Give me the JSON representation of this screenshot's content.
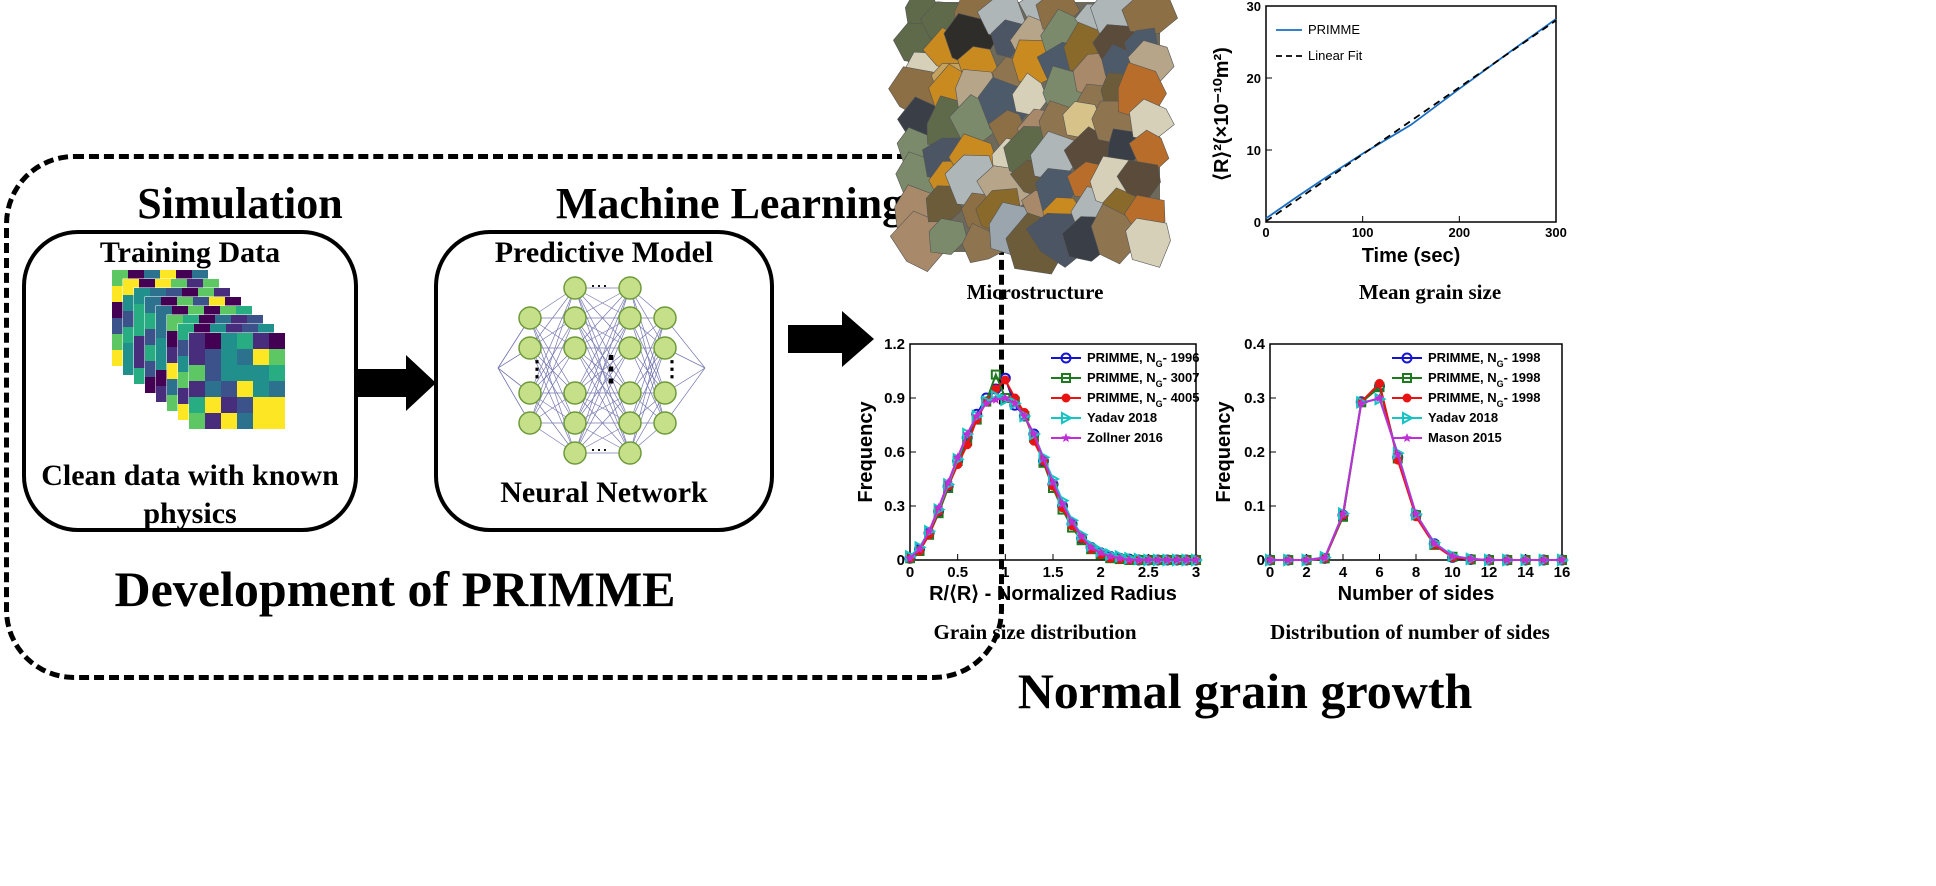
{
  "left": {
    "simulation_heading": "Simulation",
    "ml_heading": "Machine Learning",
    "training_label": "Training Data",
    "clean_label_1": "Clean data with known",
    "clean_label_2": "physics",
    "predictive_label": "Predictive Model",
    "nn_label": "Neural Network",
    "footer": "Development of PRIMME"
  },
  "captions": {
    "microstructure": "Microstructure",
    "mean_grain": "Mean grain size",
    "grain_dist": "Grain size distribution",
    "sides_dist": "Distribution of number of sides",
    "main_title": "Normal grain growth"
  },
  "colors": {
    "primme_blue": "#1a6fc4",
    "blue": "#1414d0",
    "green": "#1f7a1f",
    "red": "#e81414",
    "cyan": "#17c4c4",
    "magenta": "#c02ed6"
  },
  "chart_data": [
    {
      "type": "line",
      "xlabel": "Time (sec)",
      "ylabel": "⟨R⟩²(×10⁻¹⁰m²)",
      "xlim": [
        0,
        300
      ],
      "ylim": [
        0,
        30
      ],
      "xticks": [
        "0",
        "100",
        "200",
        "300"
      ],
      "yticks": [
        "0",
        "10",
        "20",
        "30"
      ],
      "legend_position": "top-left",
      "series": [
        {
          "name": "PRIMME",
          "style": "solid",
          "x": [
            0,
            30,
            60,
            100,
            150,
            200,
            250,
            300
          ],
          "y": [
            0.5,
            3.3,
            6.0,
            9.5,
            13.5,
            18.5,
            23.4,
            28.2
          ]
        },
        {
          "name": "Linear Fit",
          "style": "dashed",
          "x": [
            0,
            300
          ],
          "y": [
            0.1,
            28.0
          ]
        }
      ]
    },
    {
      "type": "line",
      "xlabel": "R/⟨R⟩ -  Normalized Radius",
      "ylabel": "Frequency",
      "xlim": [
        0,
        3
      ],
      "ylim": [
        0,
        1.2
      ],
      "xticks": [
        "0",
        "0.5",
        "1",
        "1.5",
        "2",
        "2.5",
        "3"
      ],
      "yticks": [
        "0",
        "0.3",
        "0.6",
        "0.9",
        "1.2"
      ],
      "legend_position": "top-right",
      "x": [
        0,
        0.1,
        0.2,
        0.3,
        0.4,
        0.5,
        0.6,
        0.7,
        0.8,
        0.9,
        1.0,
        1.1,
        1.2,
        1.3,
        1.4,
        1.5,
        1.6,
        1.7,
        1.8,
        1.9,
        2.0,
        2.1,
        2.2,
        2.3,
        2.4,
        2.5,
        2.6,
        2.7,
        2.8,
        2.9,
        3.0
      ],
      "series": [
        {
          "name": "PRIMME, N_G- 1996",
          "marker": "circle",
          "values": [
            0.01,
            0.06,
            0.15,
            0.27,
            0.41,
            0.55,
            0.68,
            0.81,
            0.9,
            0.95,
            1.01,
            0.86,
            0.8,
            0.7,
            0.55,
            0.42,
            0.3,
            0.2,
            0.12,
            0.07,
            0.04,
            0.02,
            0.01,
            0.005,
            0,
            0,
            0,
            0,
            0,
            0,
            0
          ]
        },
        {
          "name": "PRIMME, N_G- 3007",
          "marker": "square",
          "values": [
            0.01,
            0.05,
            0.14,
            0.26,
            0.4,
            0.55,
            0.66,
            0.78,
            0.88,
            1.03,
            0.9,
            0.88,
            0.8,
            0.68,
            0.54,
            0.4,
            0.28,
            0.18,
            0.11,
            0.06,
            0.03,
            0.01,
            0.005,
            0,
            0,
            0,
            0,
            0,
            0,
            0,
            0
          ]
        },
        {
          "name": "PRIMME, N_G- 4005",
          "marker": "diamond",
          "values": [
            0.01,
            0.05,
            0.14,
            0.27,
            0.41,
            0.53,
            0.64,
            0.78,
            0.88,
            0.95,
            1.0,
            0.9,
            0.82,
            0.66,
            0.55,
            0.41,
            0.29,
            0.19,
            0.12,
            0.06,
            0.03,
            0.01,
            0.005,
            0,
            0,
            0,
            0,
            0,
            0,
            0,
            0
          ]
        },
        {
          "name": "Yadav 2018",
          "marker": "triangle",
          "values": [
            0.02,
            0.07,
            0.16,
            0.28,
            0.42,
            0.56,
            0.7,
            0.8,
            0.88,
            0.91,
            0.89,
            0.87,
            0.8,
            0.7,
            0.57,
            0.45,
            0.33,
            0.22,
            0.14,
            0.08,
            0.05,
            0.03,
            0.02,
            0.01,
            0.005,
            0,
            0,
            0,
            0,
            0,
            0
          ]
        },
        {
          "name": "Zollner 2016",
          "marker": "star",
          "values": [
            0.01,
            0.06,
            0.16,
            0.29,
            0.43,
            0.57,
            0.7,
            0.8,
            0.87,
            0.89,
            0.9,
            0.87,
            0.8,
            0.7,
            0.56,
            0.43,
            0.31,
            0.21,
            0.13,
            0.07,
            0.04,
            0.02,
            0.01,
            0,
            0,
            0,
            0,
            0,
            0,
            0,
            0
          ]
        }
      ]
    },
    {
      "type": "line",
      "xlabel": "Number of sides",
      "ylabel": "Frequency",
      "xlim": [
        0,
        16
      ],
      "ylim": [
        0,
        0.4
      ],
      "xticks": [
        "0",
        "2",
        "4",
        "6",
        "8",
        "10",
        "12",
        "14",
        "16"
      ],
      "yticks": [
        "0",
        "0.1",
        "0.2",
        "0.3",
        "0.4"
      ],
      "legend_position": "top-right",
      "x": [
        0,
        1,
        2,
        3,
        4,
        5,
        6,
        7,
        8,
        9,
        10,
        11,
        12,
        13,
        14,
        15,
        16
      ],
      "series": [
        {
          "name": "PRIMME, N_G- 1998",
          "marker": "circle",
          "values": [
            0,
            0,
            0,
            0.003,
            0.083,
            0.293,
            0.322,
            0.19,
            0.083,
            0.03,
            0.005,
            0.001,
            0,
            0,
            0,
            0,
            0
          ]
        },
        {
          "name": "PRIMME, N_G- 1998",
          "marker": "square",
          "values": [
            0,
            0,
            0,
            0.003,
            0.08,
            0.292,
            0.32,
            0.188,
            0.083,
            0.028,
            0.006,
            0.001,
            0,
            0,
            0,
            0,
            0
          ]
        },
        {
          "name": "PRIMME, N_G- 1998",
          "marker": "diamond",
          "values": [
            0,
            0,
            0,
            0.003,
            0.083,
            0.293,
            0.327,
            0.185,
            0.08,
            0.028,
            0.005,
            0.001,
            0,
            0,
            0,
            0,
            0
          ]
        },
        {
          "name": "Yadav 2018",
          "marker": "triangle",
          "values": [
            0,
            0,
            0,
            0.005,
            0.086,
            0.292,
            0.298,
            0.198,
            0.085,
            0.032,
            0.008,
            0.002,
            0,
            0,
            0,
            0,
            0
          ]
        },
        {
          "name": "Mason 2015",
          "marker": "star",
          "values": [
            0,
            0,
            0,
            0.004,
            0.085,
            0.29,
            0.3,
            0.195,
            0.085,
            0.031,
            0.007,
            0.002,
            0,
            0,
            0,
            0,
            0
          ]
        }
      ]
    }
  ]
}
